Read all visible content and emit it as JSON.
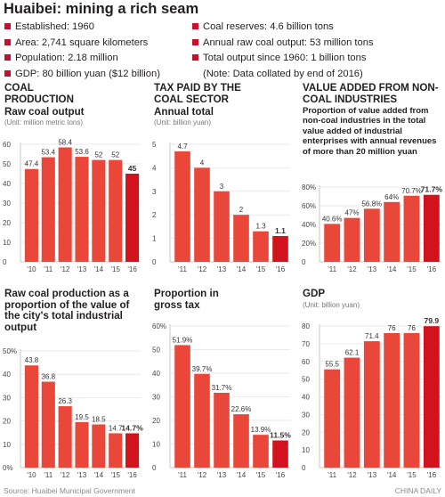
{
  "title": "Huaibei: mining a rich seam",
  "facts_left": [
    "Established: 1960",
    "Area: 2,741 square kilometers",
    "Population: 2.18 million",
    "GDP: 80 billion yuan ($12 billion)"
  ],
  "facts_right": [
    "Coal reserves: 4.6 billion tons",
    "Annual raw coal output: 53 million tons",
    "Total output since 1960: 1 billion tons",
    "(Note: Data collated by end of 2016)"
  ],
  "source": "Source: Huaibei Municipal Government",
  "credit": "CHINA DAILY",
  "colors": {
    "bar": "#e8473a",
    "bar_highlight": "#d2131e",
    "axis": "#c9c9c9",
    "accent": "#c8102e"
  },
  "chart_data": [
    {
      "id": "coal",
      "type": "bar",
      "section": "COAL PRODUCTION",
      "title": "Raw coal output",
      "unit": "(Unit: million metric tons)",
      "description": "",
      "categories": [
        "'10",
        "'11",
        "'12",
        "'13",
        "'14",
        "'15",
        "'16"
      ],
      "values": [
        47.4,
        53.4,
        58.4,
        53.6,
        52,
        52,
        45
      ],
      "value_labels": [
        "47.4",
        "53.4",
        "58.4",
        "53.6",
        "52",
        "52",
        "45"
      ],
      "ylim": [
        0,
        60
      ],
      "yticks": [
        "0",
        "10",
        "20",
        "30",
        "40",
        "50",
        "60"
      ],
      "highlight_last": true
    },
    {
      "id": "tax",
      "type": "bar",
      "section": "TAX PAID BY THE COAL SECTOR",
      "title": "Annual total",
      "unit": "(Unit: billion yuan)",
      "description": "",
      "categories": [
        "'11",
        "'12",
        "'13",
        "'14",
        "'15",
        "'16"
      ],
      "values": [
        4.7,
        4,
        3,
        2,
        1.3,
        1.1
      ],
      "value_labels": [
        "4.7",
        "4",
        "3",
        "2",
        "1.3",
        "1.1"
      ],
      "ylim": [
        0,
        5
      ],
      "yticks": [
        "0",
        "1",
        "2",
        "3",
        "4",
        "5"
      ],
      "highlight_last": true
    },
    {
      "id": "value_added",
      "type": "bar",
      "section": "VALUE ADDED FROM NON-COAL INDUSTRIES",
      "title": "",
      "unit": "",
      "description": "Proportion of value added from non-coal industries in the total value added of industrial enterprises with annual revenues of more than 20 million yuan",
      "categories": [
        "'11",
        "'12",
        "'13",
        "'14",
        "'15",
        "'16"
      ],
      "values": [
        40.6,
        47,
        56.8,
        64,
        70.7,
        71.7
      ],
      "value_labels": [
        "40.6%",
        "47%",
        "56.8%",
        "64%",
        "70.7%",
        "71.7%"
      ],
      "ylim": [
        0,
        80
      ],
      "yticks": [
        "0",
        "20%",
        "40%",
        "60%",
        "80%"
      ],
      "highlight_last": true
    },
    {
      "id": "coal_share",
      "type": "bar",
      "section": "",
      "title": "Raw coal production as a proportion of the value of the city's total industrial output",
      "unit": "",
      "description": "",
      "categories": [
        "'10",
        "'11",
        "'12",
        "'13",
        "'14",
        "'15",
        "'16"
      ],
      "values": [
        43.8,
        36.8,
        26.3,
        19.5,
        18.5,
        14.7,
        14.7
      ],
      "value_labels": [
        "43.8",
        "36.8",
        "26.3",
        "19.5",
        "18.5",
        "14.7",
        "14.7%"
      ],
      "ylim": [
        0,
        50
      ],
      "yticks": [
        "0%",
        "10",
        "20",
        "30",
        "40",
        "50%"
      ],
      "highlight_last": true
    },
    {
      "id": "gross_tax",
      "type": "bar",
      "section": "",
      "title": "Proportion in gross tax",
      "unit": "",
      "description": "",
      "categories": [
        "'11",
        "'12",
        "'13",
        "'14",
        "'15",
        "'16"
      ],
      "values": [
        51.9,
        39.7,
        31.7,
        22.6,
        13.9,
        11.5
      ],
      "value_labels": [
        "51.9%",
        "39.7%",
        "31.7%",
        "22.6%",
        "13.9%",
        "11.5%"
      ],
      "ylim": [
        0,
        60
      ],
      "yticks": [
        "0",
        "10",
        "20",
        "30",
        "40",
        "50",
        "60%"
      ],
      "highlight_last": true
    },
    {
      "id": "gdp",
      "type": "bar",
      "section": "",
      "title": "GDP",
      "unit": "(Unit: billion yuan)",
      "description": "",
      "categories": [
        "'11",
        "'12",
        "'13",
        "'14",
        "'15",
        "'16"
      ],
      "values": [
        55.5,
        62.1,
        71.4,
        76,
        76,
        79.9
      ],
      "value_labels": [
        "55.5",
        "62.1",
        "71.4",
        "76",
        "76",
        "79.9"
      ],
      "ylim": [
        0,
        80
      ],
      "yticks": [
        "0",
        "10",
        "20",
        "30",
        "40",
        "50",
        "60",
        "70",
        "80"
      ],
      "highlight_last": true
    }
  ]
}
